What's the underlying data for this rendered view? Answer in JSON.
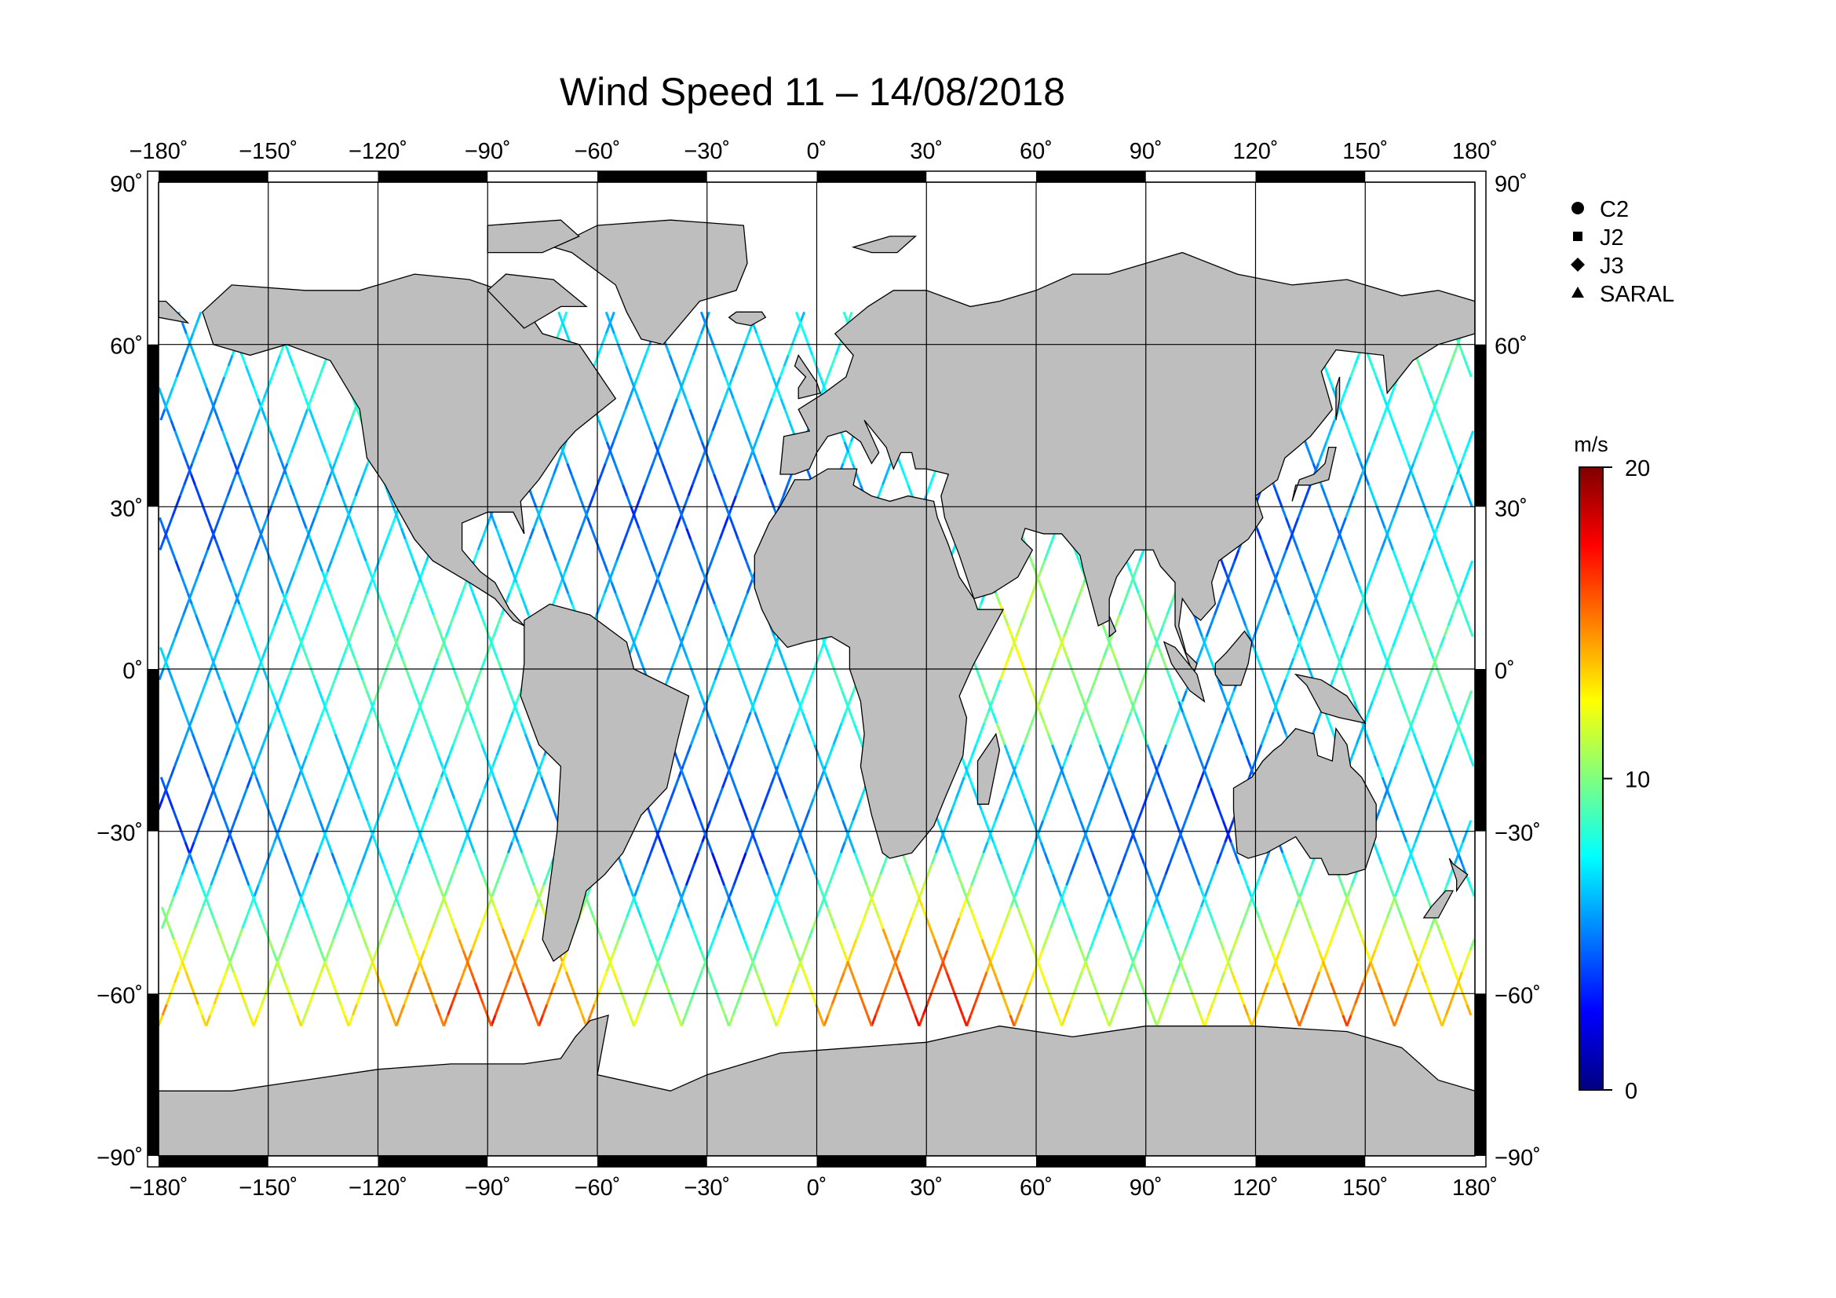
{
  "title": "Wind Speed 11 – 14/08/2018",
  "map": {
    "projection": "plate-carree",
    "lon_range": [
      -180,
      180
    ],
    "lat_range": [
      -90,
      90
    ],
    "lon_ticks": [
      -180,
      -150,
      -120,
      -90,
      -60,
      -30,
      0,
      30,
      60,
      90,
      120,
      150,
      180
    ],
    "lat_ticks": [
      -90,
      -60,
      -30,
      0,
      30,
      60,
      90
    ],
    "lon_tick_labels": [
      "−180˚",
      "−150˚",
      "−120˚",
      "−90˚",
      "−60˚",
      "−30˚",
      "0˚",
      "30˚",
      "60˚",
      "90˚",
      "120˚",
      "150˚",
      "180˚"
    ],
    "lat_tick_labels": [
      "−90˚",
      "−60˚",
      "−30˚",
      "0˚",
      "30˚",
      "60˚",
      "90˚"
    ],
    "land_color": "#bebebe",
    "ocean_color": "#ffffff",
    "grid": true
  },
  "legend": {
    "items": [
      {
        "symbol": "circle",
        "label": "C2"
      },
      {
        "symbol": "square",
        "label": "J2"
      },
      {
        "symbol": "diamond",
        "label": "J3"
      },
      {
        "symbol": "triangle",
        "label": "SARAL"
      }
    ]
  },
  "colorbar": {
    "unit": "m/s",
    "min": 0,
    "max": 20,
    "ticks": [
      "0",
      "10",
      "20"
    ],
    "colors": [
      "#00007f",
      "#0000ff",
      "#007fff",
      "#00ffff",
      "#7fff7f",
      "#ffff00",
      "#ff7f00",
      "#ff0000",
      "#7f0000"
    ]
  }
}
